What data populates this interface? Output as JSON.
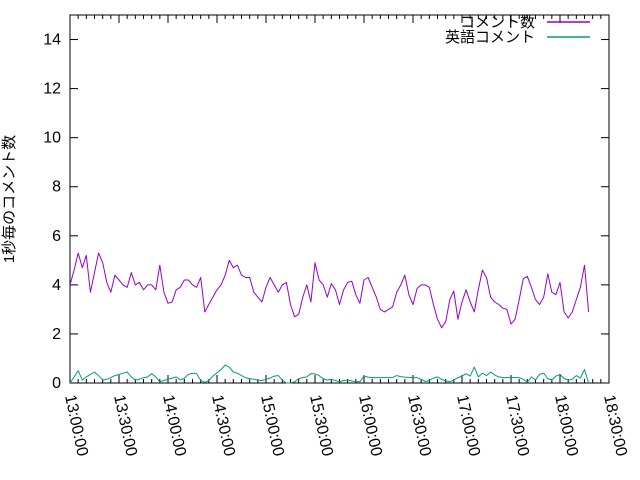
{
  "chart_data": {
    "type": "line",
    "title": "",
    "xlabel": "",
    "ylabel": "1秒毎のコメント数",
    "x_axis": {
      "start": "13:00:00",
      "end": "18:30:00",
      "tick_labels": [
        "13:00:00",
        "13:30:00",
        "14:00:00",
        "14:30:00",
        "15:00:00",
        "15:30:00",
        "16:00:00",
        "16:30:00",
        "17:00:00",
        "17:30:00",
        "18:00:00",
        "18:30:00"
      ],
      "minor_divisions_per_major": 6,
      "tick_label_rotation_deg": 78
    },
    "y_axis": {
      "min": 0,
      "max": 15,
      "tick_labels": [
        "0",
        "2",
        "4",
        "6",
        "8",
        "10",
        "12",
        "14"
      ]
    },
    "grid": false,
    "legend_position": "top-right-inside",
    "sample_step_seconds": 150,
    "series": [
      {
        "name": "コメント数",
        "color": "#9400d3",
        "start_time": "13:00:00",
        "values": [
          4.0,
          4.6,
          5.3,
          4.7,
          5.2,
          3.7,
          4.5,
          5.3,
          4.9,
          4.1,
          3.7,
          4.4,
          4.2,
          4.0,
          3.9,
          4.5,
          4.0,
          4.1,
          3.8,
          4.0,
          4.0,
          3.8,
          4.8,
          3.7,
          3.25,
          3.3,
          3.8,
          3.9,
          4.2,
          4.2,
          4.0,
          3.9,
          4.3,
          2.9,
          3.2,
          3.5,
          3.8,
          4.0,
          4.4,
          5.0,
          4.7,
          4.8,
          4.4,
          4.3,
          4.3,
          3.7,
          3.5,
          3.3,
          3.9,
          4.3,
          4.0,
          3.7,
          4.0,
          4.1,
          3.2,
          2.7,
          2.8,
          3.5,
          4.0,
          3.3,
          4.9,
          4.2,
          4.0,
          3.5,
          4.05,
          3.8,
          3.2,
          3.8,
          4.1,
          4.15,
          3.6,
          3.25,
          4.2,
          4.3,
          3.9,
          3.5,
          3.0,
          2.9,
          3.0,
          3.1,
          3.7,
          4.0,
          4.4,
          3.6,
          3.2,
          3.85,
          4.0,
          4.0,
          3.9,
          3.2,
          2.6,
          2.25,
          2.5,
          3.4,
          3.75,
          2.6,
          3.3,
          3.8,
          3.3,
          2.9,
          3.8,
          4.6,
          4.3,
          3.5,
          3.3,
          3.2,
          3.05,
          3.0,
          2.4,
          2.6,
          3.4,
          4.25,
          4.35,
          3.9,
          3.4,
          3.2,
          3.5,
          4.45,
          3.7,
          3.6,
          4.1,
          2.9,
          2.65,
          2.9,
          3.4,
          3.9,
          4.8,
          2.9
        ]
      },
      {
        "name": "英語コメント",
        "color": "#009e73",
        "start_time": "13:00:00",
        "values": [
          0.0,
          0.25,
          0.5,
          0.12,
          0.25,
          0.35,
          0.45,
          0.3,
          0.12,
          0.15,
          0.22,
          0.3,
          0.35,
          0.4,
          0.45,
          0.25,
          0.12,
          0.15,
          0.22,
          0.25,
          0.38,
          0.25,
          0.05,
          0.1,
          0.15,
          0.2,
          0.25,
          0.12,
          0.2,
          0.35,
          0.4,
          0.38,
          0.1,
          0.03,
          0.1,
          0.28,
          0.42,
          0.55,
          0.73,
          0.65,
          0.45,
          0.4,
          0.3,
          0.22,
          0.18,
          0.15,
          0.12,
          0.1,
          0.15,
          0.2,
          0.28,
          0.3,
          0.12,
          0.0,
          0.0,
          0.05,
          0.18,
          0.22,
          0.25,
          0.38,
          0.37,
          0.3,
          0.18,
          0.12,
          0.15,
          0.1,
          0.05,
          0.1,
          0.12,
          0.08,
          0.06,
          0.05,
          0.28,
          0.24,
          0.22,
          0.22,
          0.22,
          0.22,
          0.22,
          0.22,
          0.3,
          0.26,
          0.24,
          0.23,
          0.22,
          0.22,
          0.15,
          0.06,
          0.1,
          0.2,
          0.25,
          0.15,
          0.08,
          0.05,
          0.12,
          0.22,
          0.28,
          0.38,
          0.28,
          0.65,
          0.25,
          0.4,
          0.3,
          0.45,
          0.32,
          0.25,
          0.22,
          0.22,
          0.22,
          0.22,
          0.22,
          0.15,
          0.03,
          0.25,
          0.12,
          0.35,
          0.4,
          0.18,
          0.12,
          0.28,
          0.35,
          0.18,
          0.12,
          0.15,
          0.3,
          0.2,
          0.55,
          0.0
        ]
      }
    ],
    "colors": {
      "axis": "#000000",
      "background": "#ffffff"
    }
  }
}
